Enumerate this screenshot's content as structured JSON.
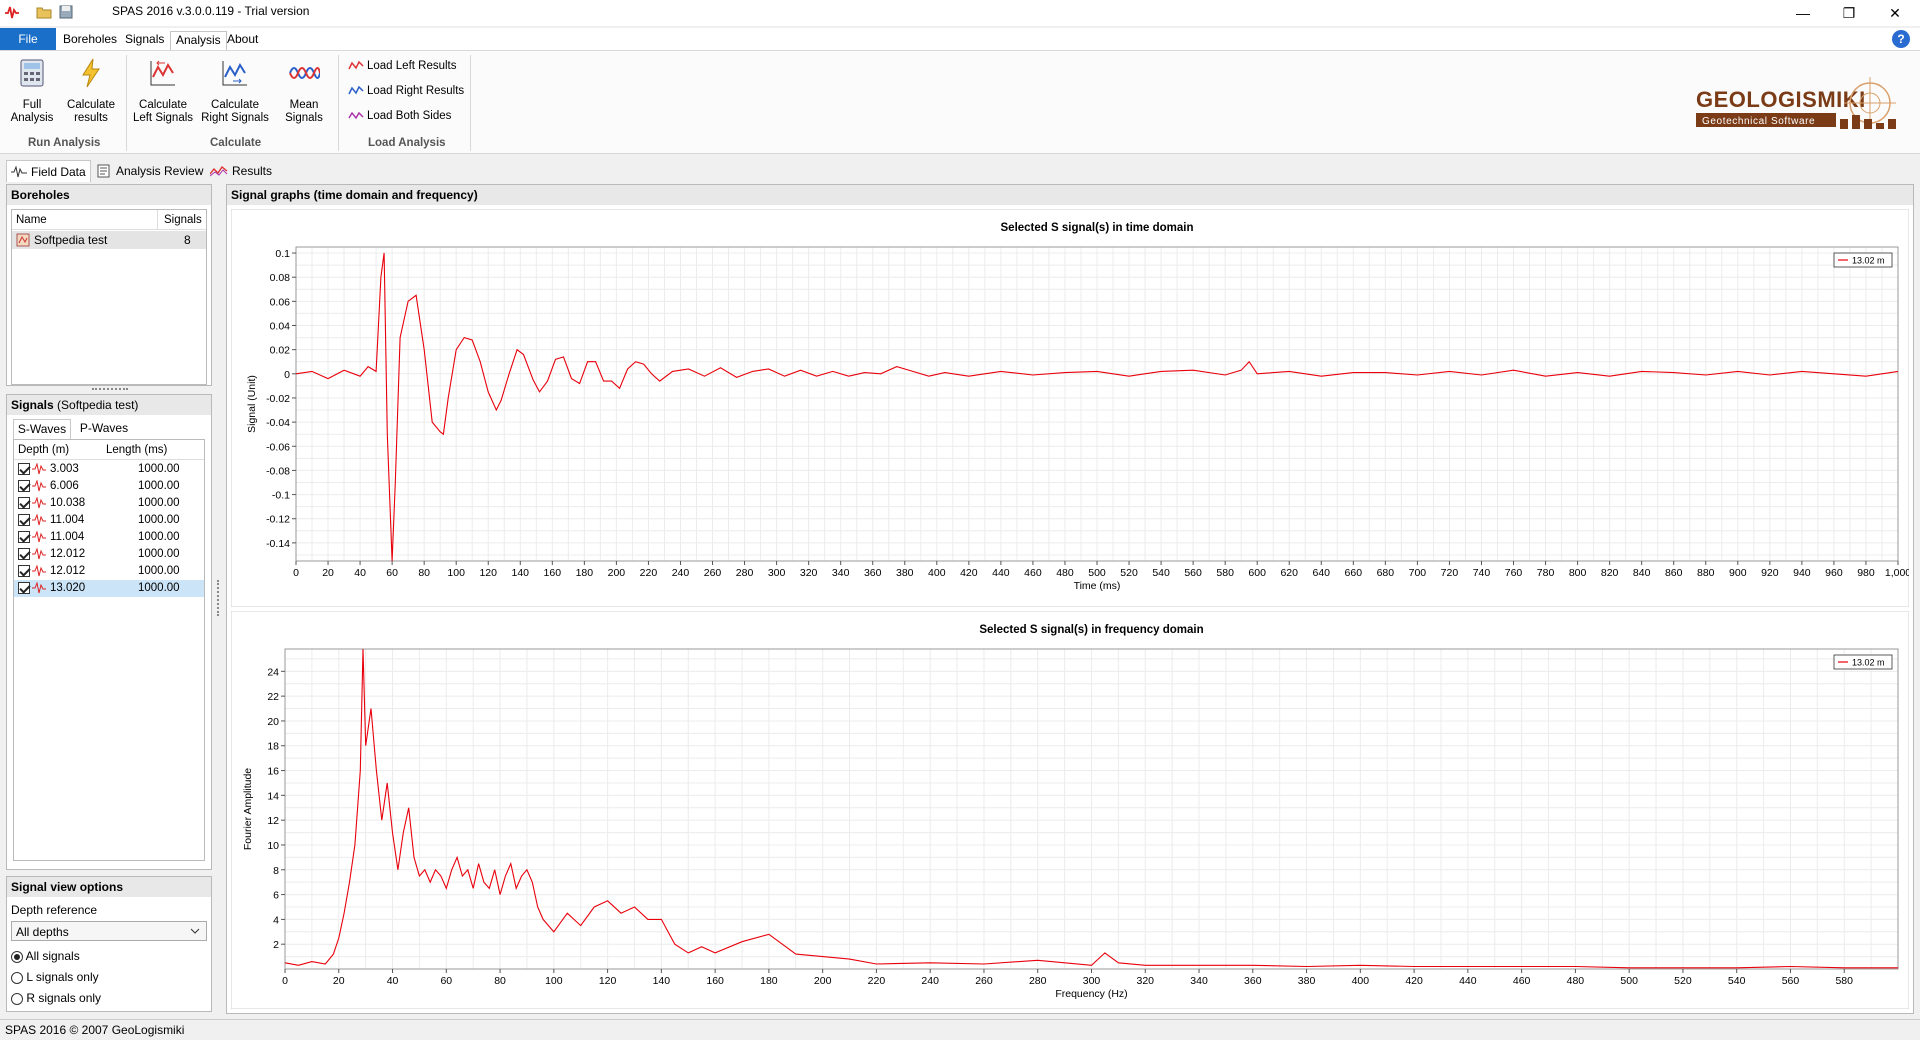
{
  "window": {
    "title": "SPAS 2016 v.3.0.0.119 - Trial version"
  },
  "menu": {
    "file": "File",
    "items": [
      "Boreholes",
      "Signals",
      "Analysis",
      "About"
    ]
  },
  "ribbon": {
    "full_analysis": "Full\nAnalysis",
    "calculate_results": "Calculate\nresults",
    "run_analysis": "Run Analysis",
    "calc_left": "Calculate\nLeft Signals",
    "calc_right": "Calculate\nRight Signals",
    "mean_signals": "Mean\nSignals",
    "calculate": "Calculate",
    "load_left": "Load Left Results",
    "load_right": "Load Right Results",
    "load_both": "Load Both Sides",
    "load_analysis": "Load Analysis"
  },
  "logo": {
    "name": "GEOLOGISMIKI",
    "tagline": "Geotechnical Software",
    "brand_color": "#7a3b16"
  },
  "subtabs": [
    "Field Data",
    "Analysis Review",
    "Results"
  ],
  "boreholes": {
    "header": "Boreholes",
    "col_name": "Name",
    "col_signals": "Signals",
    "rows": [
      {
        "name": "Softpedia test",
        "signals": "8"
      }
    ]
  },
  "signals": {
    "header": "Signals",
    "sub": "(Softpedia test)",
    "tabs": [
      "S-Waves",
      "P-Waves"
    ],
    "col_depth": "Depth (m)",
    "col_length": "Length (ms)",
    "rows": [
      {
        "depth": "3.003",
        "length": "1000.00"
      },
      {
        "depth": "6.006",
        "length": "1000.00"
      },
      {
        "depth": "10.038",
        "length": "1000.00"
      },
      {
        "depth": "11.004",
        "length": "1000.00"
      },
      {
        "depth": "11.004",
        "length": "1000.00"
      },
      {
        "depth": "12.012",
        "length": "1000.00"
      },
      {
        "depth": "12.012",
        "length": "1000.00"
      },
      {
        "depth": "13.020",
        "length": "1000.00"
      }
    ]
  },
  "view_options": {
    "header": "Signal view options",
    "depth_reference": "Depth reference",
    "select_value": "All depths",
    "radios": [
      "All signals",
      "L signals only",
      "R signals only"
    ]
  },
  "graphs_header": "Signal graphs (time domain and frequency)",
  "status": "SPAS 2016 © 2007 GeoLogismiki",
  "chart_data": [
    {
      "type": "line",
      "title": "Selected S signal(s) in time domain",
      "xlabel": "Time (ms)",
      "ylabel": "Signal (Unit)",
      "xlim": [
        0,
        1000
      ],
      "ylim": [
        -0.155,
        0.105
      ],
      "xticks": [
        0,
        20,
        40,
        60,
        80,
        100,
        120,
        140,
        160,
        180,
        200,
        220,
        240,
        260,
        280,
        300,
        320,
        340,
        360,
        380,
        400,
        420,
        440,
        460,
        480,
        500,
        520,
        540,
        560,
        580,
        600,
        620,
        640,
        660,
        680,
        700,
        720,
        740,
        760,
        780,
        800,
        820,
        840,
        860,
        880,
        900,
        920,
        940,
        960,
        980,
        1000
      ],
      "xtick_labels": [
        "0",
        "20",
        "40",
        "60",
        "80",
        "100",
        "120",
        "140",
        "160",
        "180",
        "200",
        "220",
        "240",
        "260",
        "280",
        "300",
        "320",
        "340",
        "360",
        "380",
        "400",
        "420",
        "440",
        "460",
        "480",
        "500",
        "520",
        "540",
        "560",
        "580",
        "600",
        "620",
        "640",
        "660",
        "680",
        "700",
        "720",
        "740",
        "760",
        "780",
        "800",
        "820",
        "840",
        "860",
        "880",
        "900",
        "920",
        "940",
        "960",
        "980",
        "1,000"
      ],
      "yticks": [
        0.1,
        0.08,
        0.06,
        0.04,
        0.02,
        0,
        -0.02,
        -0.04,
        -0.06,
        -0.08,
        -0.1,
        -0.12,
        -0.14
      ],
      "ytick_labels": [
        "0.1",
        "0.08",
        "0.06",
        "0.04",
        "0.02",
        "0",
        "-0.02",
        "-0.04",
        "-0.06",
        "-0.08",
        "-0.1",
        "-0.12",
        "-0.14"
      ],
      "grid": true,
      "legend": "top-right",
      "color": "#e8000b",
      "series": [
        {
          "name": "13.02 m",
          "x": [
            0,
            10,
            20,
            30,
            40,
            45,
            50,
            53,
            55,
            57,
            60,
            62,
            65,
            70,
            75,
            80,
            85,
            90,
            92,
            95,
            100,
            105,
            110,
            115,
            120,
            125,
            128,
            133,
            138,
            142,
            148,
            152,
            157,
            162,
            167,
            172,
            177,
            182,
            187,
            192,
            197,
            202,
            207,
            212,
            217,
            222,
            227,
            235,
            245,
            255,
            265,
            275,
            285,
            295,
            305,
            315,
            325,
            335,
            345,
            355,
            365,
            375,
            385,
            395,
            405,
            420,
            440,
            460,
            480,
            500,
            520,
            540,
            560,
            580,
            590,
            595,
            600,
            620,
            640,
            660,
            680,
            700,
            720,
            740,
            760,
            780,
            800,
            820,
            840,
            860,
            880,
            900,
            920,
            940,
            960,
            980,
            1000
          ],
          "y": [
            0,
            0.002,
            -0.004,
            0.003,
            -0.002,
            0.006,
            0.002,
            0.08,
            0.1,
            -0.05,
            -0.155,
            -0.09,
            0.03,
            0.06,
            0.065,
            0.02,
            -0.04,
            -0.048,
            -0.05,
            -0.02,
            0.02,
            0.03,
            0.028,
            0.01,
            -0.015,
            -0.03,
            -0.022,
            0.0,
            0.02,
            0.016,
            -0.005,
            -0.015,
            -0.006,
            0.012,
            0.014,
            -0.004,
            -0.008,
            0.01,
            0.01,
            -0.006,
            -0.006,
            -0.012,
            0.004,
            0.01,
            0.008,
            0.0,
            -0.006,
            0.002,
            0.004,
            -0.002,
            0.005,
            -0.003,
            0.002,
            0.004,
            -0.002,
            0.003,
            -0.002,
            0.002,
            -0.002,
            0.001,
            0.0,
            0.006,
            0.002,
            -0.002,
            0.001,
            -0.002,
            0.002,
            -0.001,
            0.001,
            0.002,
            -0.002,
            0.002,
            0.003,
            -0.001,
            0.003,
            0.01,
            0.0,
            0.002,
            -0.002,
            0.001,
            0.001,
            -0.001,
            0.002,
            -0.001,
            0.003,
            -0.002,
            0.001,
            -0.002,
            0.002,
            0.001,
            -0.001,
            0.002,
            -0.001,
            0.002,
            0.0,
            -0.002,
            0.002
          ]
        }
      ]
    },
    {
      "type": "line",
      "title": "Selected S signal(s) in frequency domain",
      "xlabel": "Frequency (Hz)",
      "ylabel": "Fourier Amplitude",
      "xlim": [
        0,
        600
      ],
      "ylim": [
        0,
        25.8
      ],
      "xticks": [
        0,
        20,
        40,
        60,
        80,
        100,
        120,
        140,
        160,
        180,
        200,
        220,
        240,
        260,
        280,
        300,
        320,
        340,
        360,
        380,
        400,
        420,
        440,
        460,
        480,
        500,
        520,
        540,
        560,
        580
      ],
      "xtick_labels": [
        "0",
        "20",
        "40",
        "60",
        "80",
        "100",
        "120",
        "140",
        "160",
        "180",
        "200",
        "220",
        "240",
        "260",
        "280",
        "300",
        "320",
        "340",
        "360",
        "380",
        "400",
        "420",
        "440",
        "460",
        "480",
        "500",
        "520",
        "540",
        "560",
        "580"
      ],
      "yticks": [
        2,
        4,
        6,
        8,
        10,
        12,
        14,
        16,
        18,
        20,
        22,
        24
      ],
      "ytick_labels": [
        "2",
        "4",
        "6",
        "8",
        "10",
        "12",
        "14",
        "16",
        "18",
        "20",
        "22",
        "24"
      ],
      "grid": true,
      "legend": "top-right",
      "color": "#e8000b",
      "series": [
        {
          "name": "13.02 m",
          "x": [
            0,
            5,
            10,
            15,
            18,
            20,
            22,
            24,
            26,
            28,
            29,
            30,
            32,
            34,
            36,
            38,
            40,
            42,
            44,
            46,
            48,
            50,
            52,
            54,
            56,
            58,
            60,
            62,
            64,
            66,
            68,
            70,
            72,
            74,
            76,
            78,
            80,
            82,
            84,
            86,
            88,
            90,
            92,
            94,
            96,
            98,
            100,
            105,
            110,
            115,
            120,
            125,
            130,
            135,
            140,
            145,
            150,
            155,
            160,
            170,
            180,
            190,
            200,
            210,
            220,
            240,
            260,
            280,
            300,
            305,
            310,
            320,
            340,
            360,
            380,
            400,
            420,
            440,
            460,
            480,
            500,
            520,
            540,
            560,
            580,
            600
          ],
          "y": [
            0.5,
            0.3,
            0.6,
            0.4,
            1.2,
            2.5,
            4.5,
            7,
            10,
            16,
            25.8,
            18,
            21,
            16,
            12,
            15,
            11,
            8,
            11,
            13,
            9,
            7.5,
            8,
            7,
            8,
            7.5,
            6.5,
            8,
            9,
            7.5,
            8,
            6.5,
            8.5,
            7,
            6.5,
            8,
            6,
            7.5,
            8.5,
            6.5,
            7.5,
            8,
            7,
            5,
            4,
            3.5,
            3,
            4.5,
            3.5,
            5,
            5.5,
            4.5,
            5,
            4,
            4,
            2,
            1.3,
            1.8,
            1.3,
            2.2,
            2.8,
            1.2,
            1.0,
            0.8,
            0.4,
            0.5,
            0.4,
            0.7,
            0.3,
            1.3,
            0.5,
            0.3,
            0.3,
            0.3,
            0.2,
            0.3,
            0.2,
            0.2,
            0.2,
            0.2,
            0.1,
            0.1,
            0.1,
            0.2,
            0.1,
            0.1
          ]
        }
      ]
    }
  ]
}
